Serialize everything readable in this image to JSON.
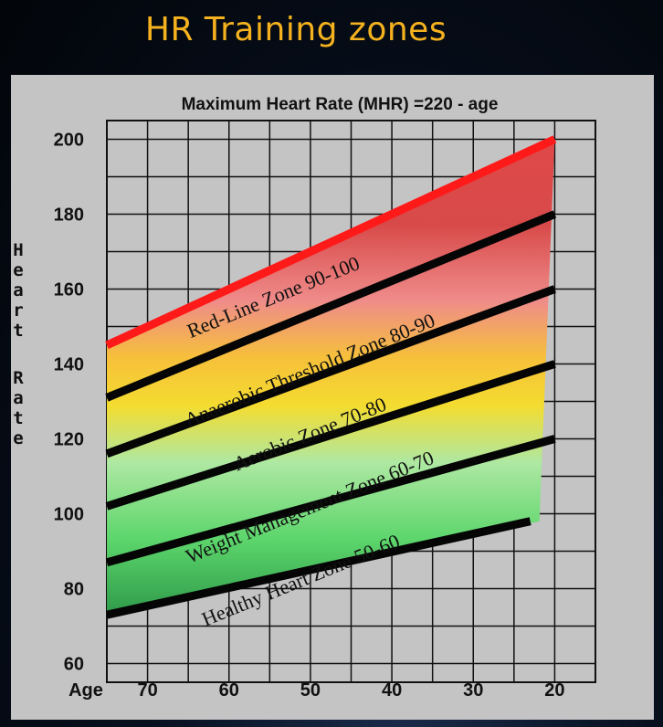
{
  "slide": {
    "title": "HR Training zones"
  },
  "chart_data": {
    "type": "area",
    "title": "Maximum Heart Rate (MHR) =220 - age",
    "ylabel": "Heart Rate",
    "xlabel": "Age",
    "x_ticks": [
      "70",
      "60",
      "50",
      "40",
      "30",
      "20"
    ],
    "y_ticks": [
      "200",
      "180",
      "160",
      "140",
      "120",
      "100",
      "80",
      "60"
    ],
    "x_reversed": true,
    "grid": true,
    "boundaries": [
      {
        "name": "MHR",
        "x": [
          75,
          20
        ],
        "y": [
          145,
          200
        ]
      },
      {
        "name": "90%",
        "x": [
          75,
          20
        ],
        "y": [
          131,
          180
        ]
      },
      {
        "name": "80%",
        "x": [
          75,
          20
        ],
        "y": [
          116,
          160
        ]
      },
      {
        "name": "70%",
        "x": [
          75,
          20
        ],
        "y": [
          102,
          140
        ]
      },
      {
        "name": "60%",
        "x": [
          75,
          20
        ],
        "y": [
          87,
          120
        ]
      },
      {
        "name": "50%",
        "x": [
          75,
          23
        ],
        "y": [
          73,
          98
        ]
      }
    ],
    "zones": [
      {
        "label": "Red-Line Zone 90-100",
        "range_pct": [
          90,
          100
        ],
        "color": "#dc4040"
      },
      {
        "label": "Anaerobic Threshold Zone 80-90",
        "range_pct": [
          80,
          90
        ],
        "color": "#ec8a88"
      },
      {
        "label": "Aerobic Zone 70-80",
        "range_pct": [
          70,
          80
        ],
        "color": "#f5d22a"
      },
      {
        "label": "Weight Management Zone 60-70",
        "range_pct": [
          60,
          70
        ],
        "color": "#a6e6a0"
      },
      {
        "label": "Healthy Heart Zone 50-60",
        "range_pct": [
          50,
          60
        ],
        "color": "#3fa556"
      }
    ]
  }
}
